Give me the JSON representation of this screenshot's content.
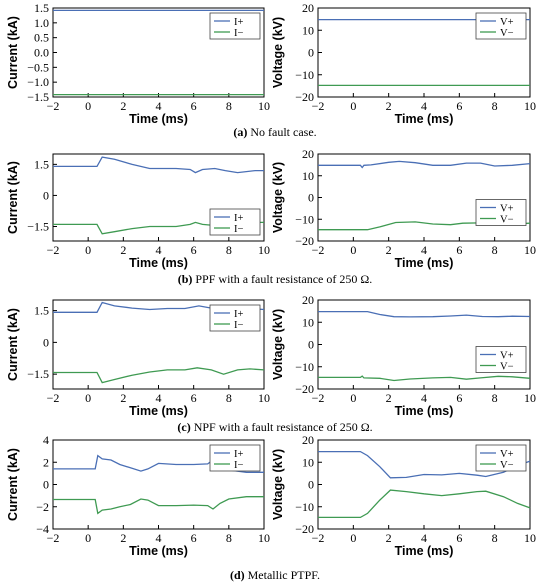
{
  "captions": [
    {
      "label": "(a)",
      "text": " No fault case."
    },
    {
      "label": "(b)",
      "text": " PPF with a fault resistance of 250 Ω."
    },
    {
      "label": "(c)",
      "text": " NPF with a fault resistance of 250 Ω."
    },
    {
      "label": "(d)",
      "text": " Metallic PTPF."
    }
  ],
  "colors": {
    "positive": "#4a6fb5",
    "negative": "#3f9a52"
  },
  "chart_data": [
    {
      "type": "line",
      "panel": "a-current",
      "xlabel": "Time (ms)",
      "ylabel": "Current (kA)",
      "xlim": [
        -2,
        10
      ],
      "ylim": [
        -1.5,
        1.5
      ],
      "xticks": [
        "−2",
        "0",
        "2",
        "4",
        "6",
        "8",
        "10"
      ],
      "yticks": [
        "1.5",
        "1.0",
        "0.5",
        "0.0",
        "−0.5",
        "−1.0",
        "−1.5"
      ],
      "ytick_values": [
        1.5,
        1.0,
        0.5,
        0.0,
        -0.5,
        -1.0,
        -1.5
      ],
      "legend": "top-right",
      "series": [
        {
          "name": "I+",
          "points": [
            [
              -2,
              1.42
            ],
            [
              10,
              1.42
            ]
          ]
        },
        {
          "name": "I−",
          "points": [
            [
              -2,
              -1.42
            ],
            [
              10,
              -1.42
            ]
          ]
        }
      ]
    },
    {
      "type": "line",
      "panel": "a-voltage",
      "xlabel": "Time (ms)",
      "ylabel": "Voltage (kV)",
      "xlim": [
        -2,
        10
      ],
      "ylim": [
        -20,
        20
      ],
      "xticks": [
        "−2",
        "0",
        "2",
        "4",
        "6",
        "8",
        "10"
      ],
      "yticks": [
        "20",
        "10",
        "0",
        "−10",
        "−20"
      ],
      "ytick_values": [
        20,
        10,
        0,
        -10,
        -20
      ],
      "legend": "top-right",
      "series": [
        {
          "name": "V+",
          "points": [
            [
              -2,
              14.8
            ],
            [
              10,
              14.8
            ]
          ]
        },
        {
          "name": "V−",
          "points": [
            [
              -2,
              -14.8
            ],
            [
              10,
              -14.8
            ]
          ]
        }
      ]
    },
    {
      "type": "line",
      "panel": "b-current",
      "xlabel": "Time (ms)",
      "ylabel": "Current (kA)",
      "xlim": [
        -2,
        10
      ],
      "ylim": [
        -2.2,
        2.0
      ],
      "xticks": [
        "−2",
        "0",
        "2",
        "4",
        "6",
        "8",
        "10"
      ],
      "yticks": [
        "1.5",
        "0",
        "−1.5"
      ],
      "ytick_values": [
        1.5,
        0,
        -1.5
      ],
      "legend": "bottom-right",
      "series": [
        {
          "name": "I+",
          "points": [
            [
              -2,
              1.4
            ],
            [
              0.5,
              1.4
            ],
            [
              0.8,
              1.85
            ],
            [
              1.5,
              1.75
            ],
            [
              2.5,
              1.5
            ],
            [
              3.5,
              1.3
            ],
            [
              5,
              1.3
            ],
            [
              5.8,
              1.25
            ],
            [
              6.1,
              1.1
            ],
            [
              6.5,
              1.25
            ],
            [
              7.2,
              1.3
            ],
            [
              7.8,
              1.2
            ],
            [
              8.5,
              1.1
            ],
            [
              9.5,
              1.2
            ],
            [
              10,
              1.2
            ]
          ]
        },
        {
          "name": "I−",
          "points": [
            [
              -2,
              -1.4
            ],
            [
              0.5,
              -1.4
            ],
            [
              0.8,
              -1.85
            ],
            [
              1.5,
              -1.75
            ],
            [
              2.5,
              -1.6
            ],
            [
              3.5,
              -1.5
            ],
            [
              5,
              -1.5
            ],
            [
              5.8,
              -1.4
            ],
            [
              6.1,
              -1.3
            ],
            [
              6.5,
              -1.4
            ],
            [
              7.2,
              -1.45
            ],
            [
              7.8,
              -1.35
            ],
            [
              8.5,
              -1.25
            ],
            [
              9.5,
              -1.3
            ],
            [
              10,
              -1.3
            ]
          ]
        }
      ]
    },
    {
      "type": "line",
      "panel": "b-voltage",
      "xlabel": "Time (ms)",
      "ylabel": "Voltage (kV)",
      "xlim": [
        -2,
        10
      ],
      "ylim": [
        -20,
        20
      ],
      "xticks": [
        "−2",
        "0",
        "2",
        "4",
        "6",
        "8",
        "10"
      ],
      "yticks": [
        "20",
        "10",
        "0",
        "−10",
        "−20"
      ],
      "ytick_values": [
        20,
        10,
        0,
        -10,
        -20
      ],
      "legend": "center-right",
      "series": [
        {
          "name": "V+",
          "points": [
            [
              -2,
              14.8
            ],
            [
              0.4,
              14.8
            ],
            [
              0.5,
              13.8
            ],
            [
              0.6,
              14.8
            ],
            [
              1,
              15
            ],
            [
              2,
              16.2
            ],
            [
              2.6,
              16.6
            ],
            [
              3.5,
              16
            ],
            [
              4.5,
              14.8
            ],
            [
              5.5,
              14.8
            ],
            [
              6.4,
              15.8
            ],
            [
              7.2,
              15.8
            ],
            [
              8,
              14.5
            ],
            [
              9,
              14.8
            ],
            [
              10,
              15.6
            ]
          ]
        },
        {
          "name": "V−",
          "points": [
            [
              -2,
              -14.8
            ],
            [
              0.8,
              -14.8
            ],
            [
              1.5,
              -13.5
            ],
            [
              2.4,
              -11.5
            ],
            [
              3.5,
              -11.2
            ],
            [
              4.5,
              -12.2
            ],
            [
              5.5,
              -12.5
            ],
            [
              6.2,
              -11.8
            ],
            [
              7.2,
              -11.7
            ],
            [
              8,
              -12.5
            ],
            [
              9,
              -12.2
            ],
            [
              10,
              -11.8
            ]
          ]
        }
      ]
    },
    {
      "type": "line",
      "panel": "c-current",
      "xlabel": "Time (ms)",
      "ylabel": "Current (kA)",
      "xlim": [
        -2,
        10
      ],
      "ylim": [
        -2.2,
        2.0
      ],
      "xticks": [
        "−2",
        "0",
        "2",
        "4",
        "6",
        "8",
        "10"
      ],
      "yticks": [
        "1.5",
        "0",
        "−1.5"
      ],
      "ytick_values": [
        1.5,
        0,
        -1.5
      ],
      "legend": "top-right",
      "series": [
        {
          "name": "I+",
          "points": [
            [
              -2,
              1.42
            ],
            [
              0.5,
              1.42
            ],
            [
              0.8,
              1.88
            ],
            [
              1.5,
              1.72
            ],
            [
              2.5,
              1.62
            ],
            [
              3.5,
              1.55
            ],
            [
              4.5,
              1.6
            ],
            [
              5.5,
              1.6
            ],
            [
              6.3,
              1.72
            ],
            [
              7,
              1.62
            ],
            [
              7.8,
              1.68
            ],
            [
              8.6,
              1.62
            ],
            [
              9.5,
              1.58
            ],
            [
              10,
              1.55
            ]
          ]
        },
        {
          "name": "I−",
          "points": [
            [
              -2,
              -1.42
            ],
            [
              0.5,
              -1.42
            ],
            [
              0.8,
              -1.9
            ],
            [
              1.5,
              -1.75
            ],
            [
              2.5,
              -1.55
            ],
            [
              3.5,
              -1.4
            ],
            [
              4.5,
              -1.3
            ],
            [
              5.5,
              -1.3
            ],
            [
              6.2,
              -1.2
            ],
            [
              7,
              -1.3
            ],
            [
              7.7,
              -1.5
            ],
            [
              8.5,
              -1.3
            ],
            [
              9.2,
              -1.25
            ],
            [
              10,
              -1.3
            ]
          ]
        }
      ]
    },
    {
      "type": "line",
      "panel": "c-voltage",
      "xlabel": "Time (ms)",
      "ylabel": "Voltage (kV)",
      "xlim": [
        -2,
        10
      ],
      "ylim": [
        -20,
        20
      ],
      "xticks": [
        "−2",
        "0",
        "2",
        "4",
        "6",
        "8",
        "10"
      ],
      "yticks": [
        "20",
        "10",
        "0",
        "−10",
        "−20"
      ],
      "ytick_values": [
        20,
        10,
        0,
        -10,
        -20
      ],
      "legend": "center-right",
      "series": [
        {
          "name": "V+",
          "points": [
            [
              -2,
              14.8
            ],
            [
              0.8,
              14.8
            ],
            [
              1.5,
              13.5
            ],
            [
              2.3,
              12.5
            ],
            [
              3.2,
              12.4
            ],
            [
              4.5,
              12.5
            ],
            [
              5.5,
              12.8
            ],
            [
              6.4,
              13.2
            ],
            [
              7.3,
              12.6
            ],
            [
              8.2,
              12.5
            ],
            [
              9,
              12.7
            ],
            [
              10,
              12.6
            ]
          ]
        },
        {
          "name": "V−",
          "points": [
            [
              -2,
              -14.8
            ],
            [
              0.4,
              -14.8
            ],
            [
              0.5,
              -14.2
            ],
            [
              0.6,
              -15
            ],
            [
              1.5,
              -15.2
            ],
            [
              2.3,
              -16.2
            ],
            [
              3.2,
              -15.5
            ],
            [
              4.5,
              -15
            ],
            [
              5.5,
              -14.8
            ],
            [
              6.4,
              -15.6
            ],
            [
              7.2,
              -15
            ],
            [
              8.2,
              -14.3
            ],
            [
              9,
              -14.5
            ],
            [
              10,
              -15.2
            ]
          ]
        }
      ]
    },
    {
      "type": "line",
      "panel": "d-current",
      "xlabel": "Time (ms)",
      "ylabel": "Current (kA)",
      "xlim": [
        -2,
        10
      ],
      "ylim": [
        -4,
        4
      ],
      "xticks": [
        "−2",
        "0",
        "2",
        "4",
        "6",
        "8",
        "10"
      ],
      "yticks": [
        "4",
        "2",
        "0",
        "−2",
        "−4"
      ],
      "ytick_values": [
        4,
        2,
        0,
        -2,
        -4
      ],
      "legend": "top-right",
      "series": [
        {
          "name": "I+",
          "points": [
            [
              -2,
              1.4
            ],
            [
              0.4,
              1.4
            ],
            [
              0.55,
              2.6
            ],
            [
              0.8,
              2.3
            ],
            [
              1.3,
              2.2
            ],
            [
              1.8,
              1.8
            ],
            [
              2.4,
              1.5
            ],
            [
              3,
              1.2
            ],
            [
              3.4,
              1.4
            ],
            [
              4,
              1.9
            ],
            [
              5,
              1.8
            ],
            [
              6,
              1.8
            ],
            [
              6.8,
              1.85
            ],
            [
              7.1,
              2.2
            ],
            [
              7.5,
              1.6
            ],
            [
              8,
              1.3
            ],
            [
              9,
              1.1
            ],
            [
              10,
              1.1
            ]
          ]
        },
        {
          "name": "I−",
          "points": [
            [
              -2,
              -1.35
            ],
            [
              0.4,
              -1.35
            ],
            [
              0.55,
              -2.6
            ],
            [
              0.8,
              -2.3
            ],
            [
              1.3,
              -2.2
            ],
            [
              1.8,
              -2.0
            ],
            [
              2.4,
              -1.8
            ],
            [
              3,
              -1.3
            ],
            [
              3.4,
              -1.4
            ],
            [
              4,
              -1.9
            ],
            [
              5,
              -1.9
            ],
            [
              6,
              -1.85
            ],
            [
              6.8,
              -1.9
            ],
            [
              7.1,
              -2.2
            ],
            [
              7.5,
              -1.7
            ],
            [
              8,
              -1.3
            ],
            [
              9,
              -1.1
            ],
            [
              10,
              -1.1
            ]
          ]
        }
      ]
    },
    {
      "type": "line",
      "panel": "d-voltage",
      "xlabel": "Time (ms)",
      "ylabel": "Voltage (kV)",
      "xlim": [
        -2,
        10
      ],
      "ylim": [
        -20,
        20
      ],
      "xticks": [
        "−2",
        "0",
        "2",
        "4",
        "6",
        "8",
        "10"
      ],
      "yticks": [
        "20",
        "10",
        "0",
        "−10",
        "−20"
      ],
      "ytick_values": [
        20,
        10,
        0,
        -10,
        -20
      ],
      "legend": "top-right",
      "series": [
        {
          "name": "V+",
          "points": [
            [
              -2,
              14.8
            ],
            [
              0.4,
              14.8
            ],
            [
              0.8,
              13
            ],
            [
              1.5,
              8
            ],
            [
              2.1,
              3
            ],
            [
              3,
              3.2
            ],
            [
              4,
              4.5
            ],
            [
              5,
              4.3
            ],
            [
              6,
              5
            ],
            [
              7,
              4.2
            ],
            [
              7.5,
              3.6
            ],
            [
              8.5,
              5.5
            ],
            [
              9.3,
              8.5
            ],
            [
              10,
              10.5
            ]
          ]
        },
        {
          "name": "V−",
          "points": [
            [
              -2,
              -14.8
            ],
            [
              0.4,
              -14.8
            ],
            [
              0.8,
              -13
            ],
            [
              1.5,
              -7
            ],
            [
              2.1,
              -2.5
            ],
            [
              3,
              -3.2
            ],
            [
              4,
              -4.2
            ],
            [
              5,
              -5
            ],
            [
              6,
              -4.2
            ],
            [
              7,
              -3.2
            ],
            [
              7.5,
              -3
            ],
            [
              8.5,
              -5.5
            ],
            [
              9.3,
              -8.5
            ],
            [
              10,
              -10.5
            ]
          ]
        }
      ]
    }
  ]
}
